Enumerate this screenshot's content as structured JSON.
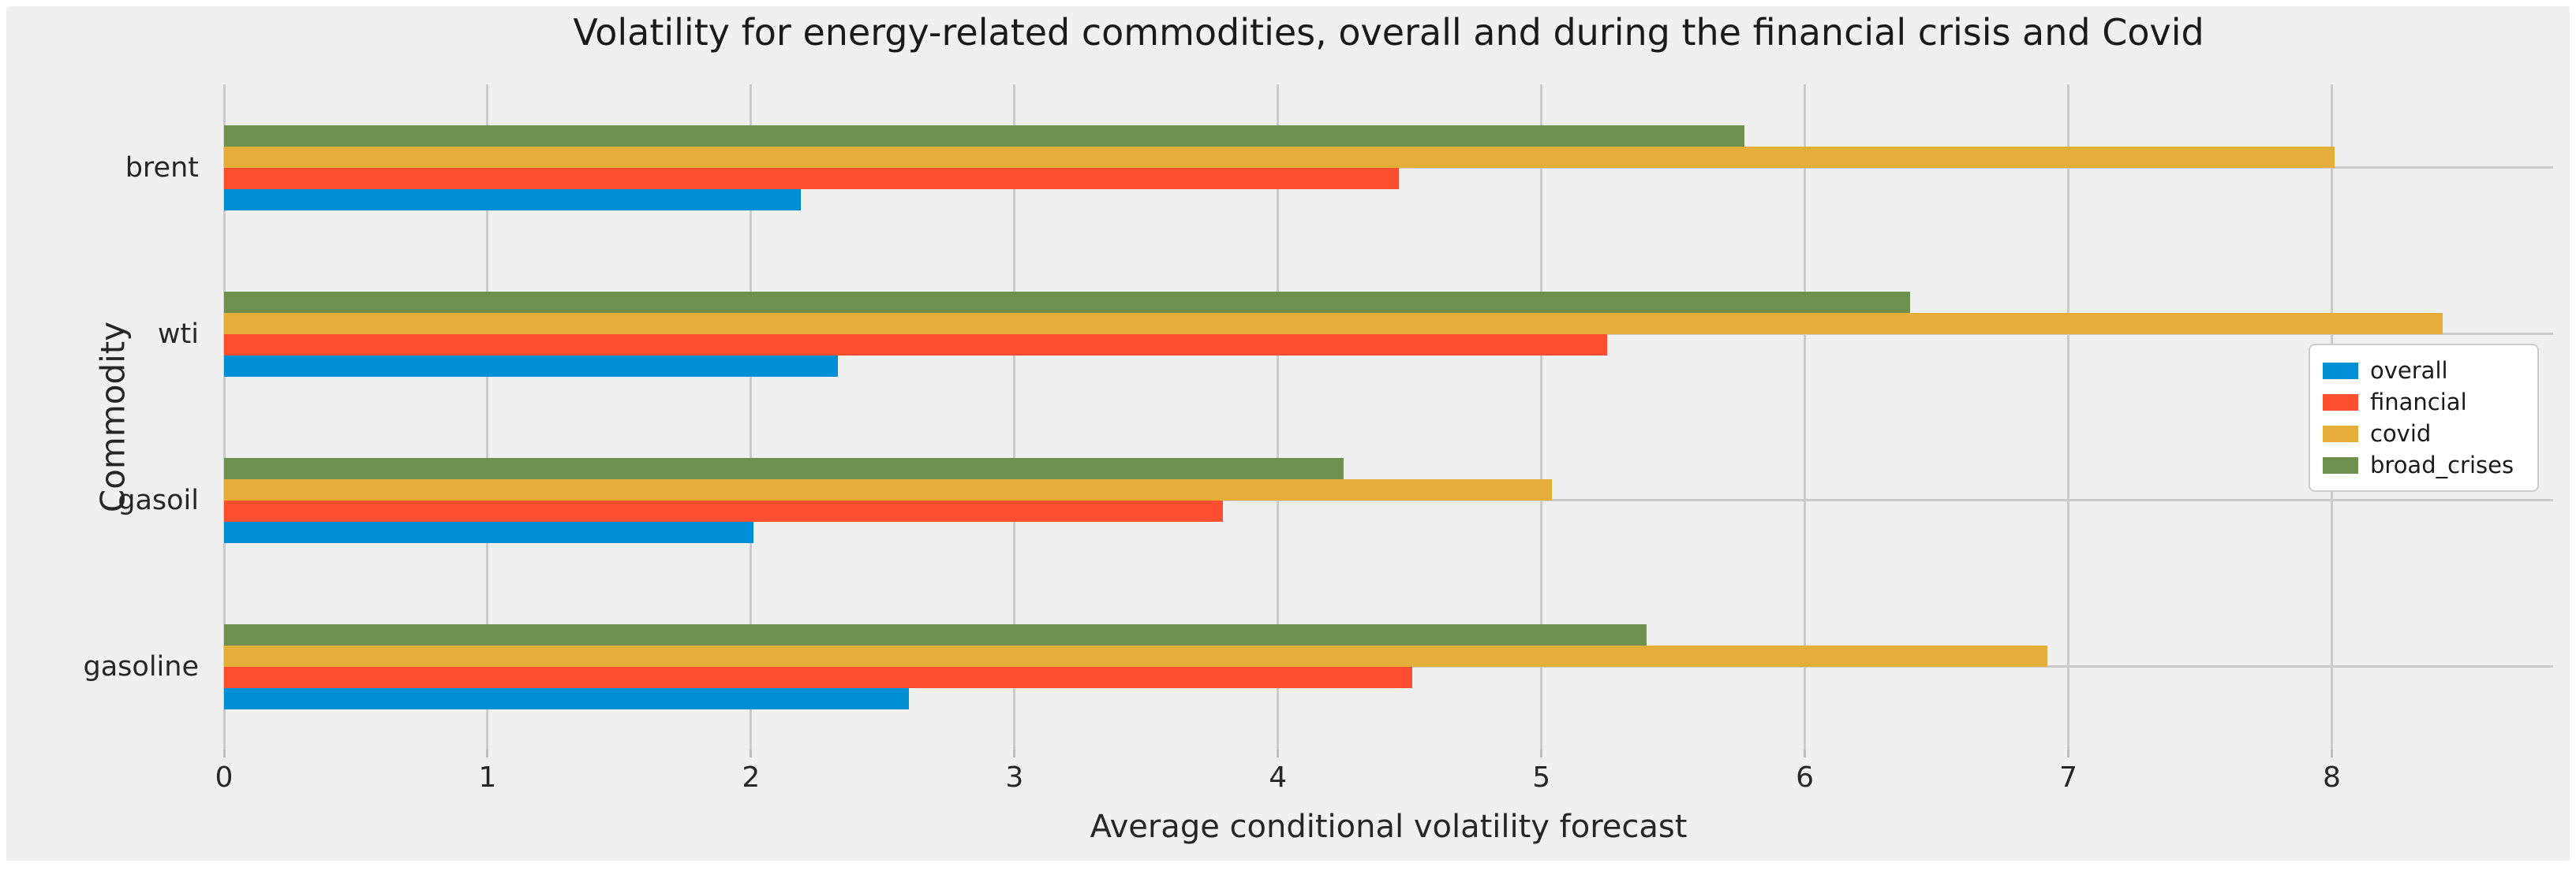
{
  "figure": {
    "background_color": "#f0f0f0",
    "outer_background_color": "#ffffff"
  },
  "chart_data": {
    "type": "bar",
    "orientation": "horizontal",
    "title": "Volatility for energy-related commodities, overall and during the financial crisis and Covid",
    "xlabel": "Average conditional volatility forecast",
    "ylabel": "Commodity",
    "categories": [
      "brent",
      "wti",
      "gasoil",
      "gasoline"
    ],
    "series": [
      {
        "name": "overall",
        "color": "#008fd5",
        "values": [
          2.19,
          2.33,
          2.01,
          2.6
        ]
      },
      {
        "name": "financial",
        "color": "#fc4f30",
        "values": [
          4.46,
          5.25,
          3.79,
          4.51
        ]
      },
      {
        "name": "covid",
        "color": "#e5ae38",
        "values": [
          8.01,
          8.42,
          5.04,
          6.92
        ]
      },
      {
        "name": "broad_crises",
        "color": "#6d904f",
        "values": [
          5.77,
          6.4,
          4.25,
          5.4
        ]
      }
    ],
    "xticks": [
      0,
      1,
      2,
      3,
      4,
      5,
      6,
      7,
      8
    ],
    "xlim": [
      0,
      8.84
    ],
    "grid": true,
    "grid_color": "#cbcbcb",
    "legend": {
      "position": "center right",
      "entries": [
        "overall",
        "financial",
        "covid",
        "broad_crises"
      ],
      "background_color": "#ffffff",
      "border_color": "#cccccc"
    }
  }
}
